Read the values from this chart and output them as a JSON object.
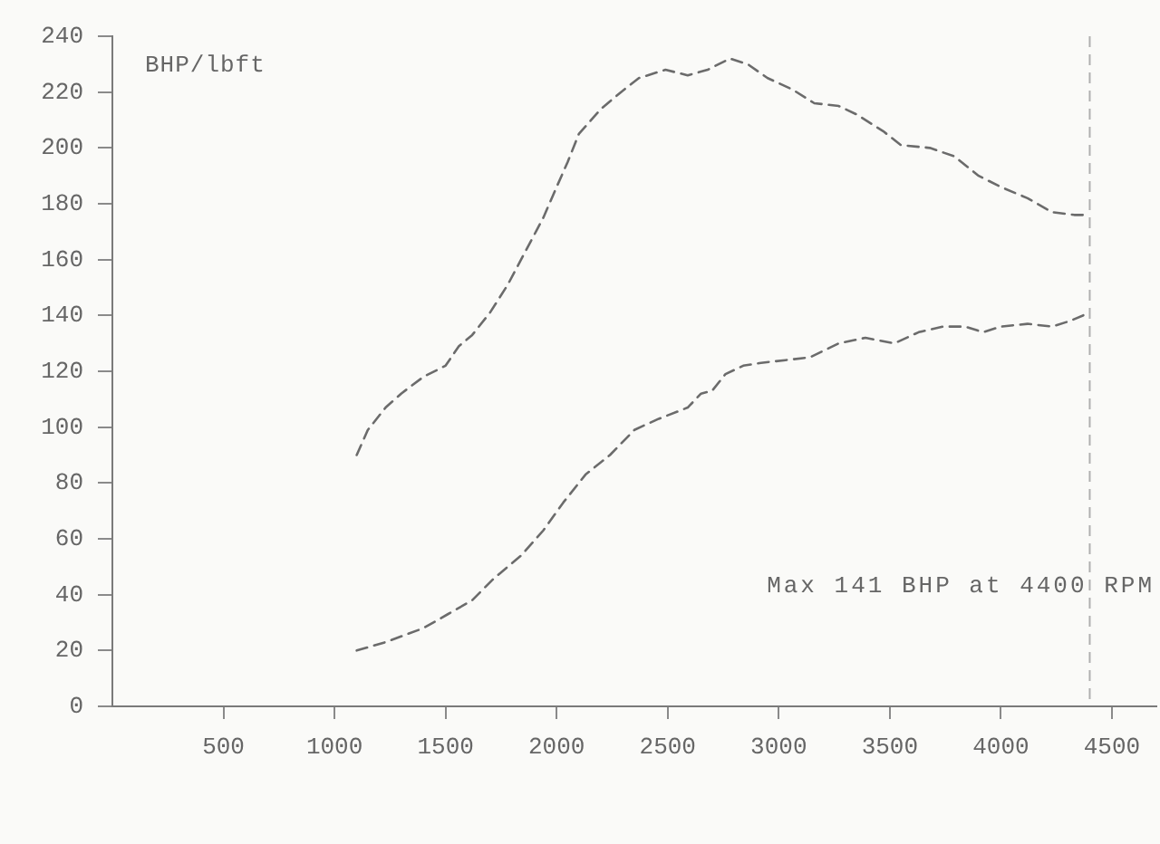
{
  "chart_data": {
    "type": "line",
    "ylabel": "BHP/lbft",
    "annotations": [
      "Max 141 BHP at 4400 RPM"
    ],
    "series": [
      {
        "color": "#6b6b6b",
        "x": [
          1100,
          1150,
          1230,
          1300,
          1400,
          1500,
          1560,
          1620,
          1700,
          1780,
          1860,
          1940,
          2000,
          2050,
          2100,
          2200,
          2290,
          2370,
          2490,
          2590,
          2680,
          2780,
          2860,
          2950,
          3060,
          3160,
          3270,
          3350,
          3470,
          3550,
          3680,
          3790,
          3900,
          4000,
          4120,
          4230,
          4330,
          4400
        ],
        "values": [
          90,
          99,
          107,
          112,
          118,
          122,
          129,
          133,
          141,
          151,
          163,
          175,
          186,
          195,
          205,
          214,
          220,
          225,
          228,
          226,
          228,
          232,
          230,
          225,
          221,
          216,
          215,
          212,
          206,
          201,
          200,
          197,
          190,
          186,
          182,
          177,
          176,
          176
        ]
      },
      {
        "color": "#6b6b6b",
        "x": [
          1100,
          1230,
          1400,
          1510,
          1620,
          1720,
          1840,
          1940,
          2030,
          2130,
          2240,
          2350,
          2460,
          2590,
          2650,
          2700,
          2760,
          2840,
          2920,
          3030,
          3140,
          3270,
          3390,
          3520,
          3630,
          3740,
          3840,
          3920,
          4000,
          4120,
          4230,
          4310,
          4400
        ],
        "values": [
          20,
          23,
          28,
          33,
          38,
          46,
          54,
          63,
          73,
          83,
          90,
          99,
          103,
          107,
          112,
          113,
          119,
          122,
          123,
          124,
          125,
          130,
          132,
          130,
          134,
          136,
          136,
          134,
          136,
          137,
          136,
          138,
          141
        ]
      }
    ],
    "xlim": [
      0,
      4700
    ],
    "xticks": [
      500,
      1000,
      1500,
      2000,
      2500,
      3000,
      3500,
      4000,
      4500
    ],
    "ylim": [
      0,
      240
    ],
    "yticks": [
      0,
      20,
      40,
      60,
      80,
      100,
      120,
      140,
      160,
      180,
      200,
      220,
      240
    ],
    "ref_lines": [
      {
        "axis": "x",
        "value": 4400,
        "color": "#b0b0b0",
        "line_style": "dashed"
      }
    ],
    "marker": "none",
    "line_style": "dashed"
  }
}
